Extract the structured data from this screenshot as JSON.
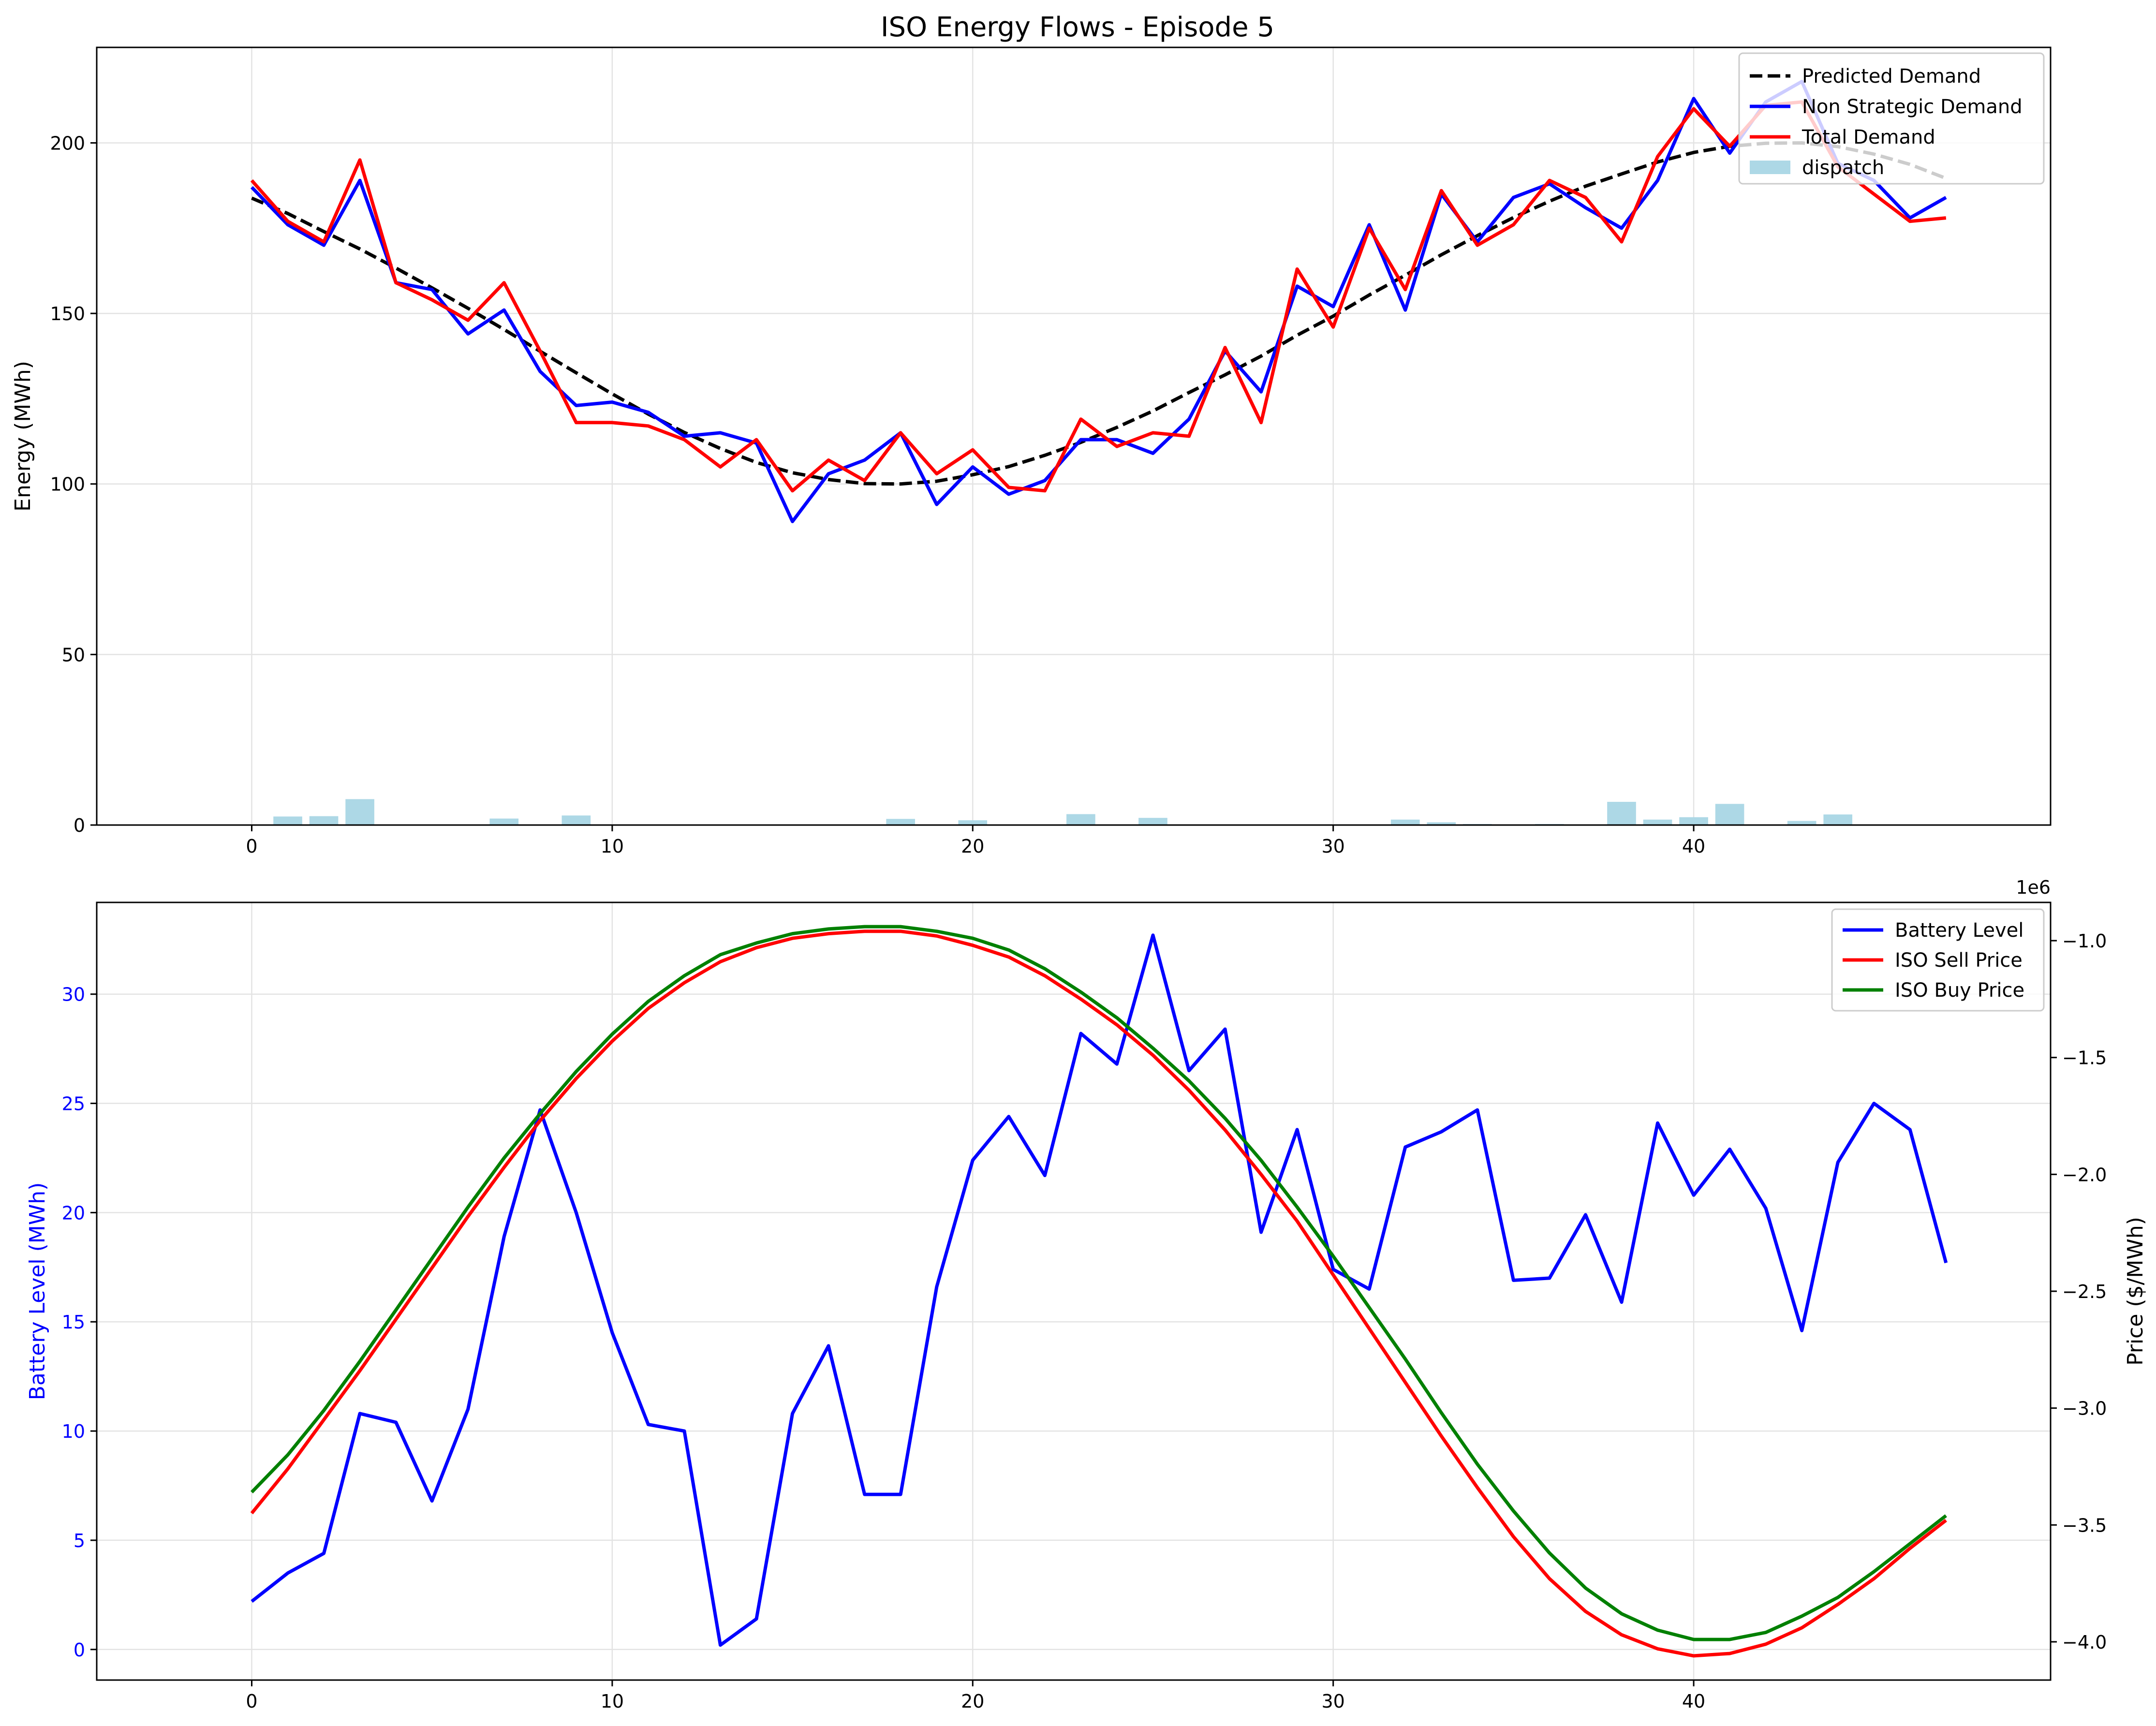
{
  "title": "ISO Energy Flows - Episode 5",
  "chart_data": [
    {
      "type": "line",
      "title": "ISO Energy Flows - Episode 5",
      "xlabel": "",
      "ylabel": "Energy (MWh)",
      "xlim": [
        -4.3,
        49.9
      ],
      "ylim": [
        0,
        228
      ],
      "xticks": [
        0,
        10,
        20,
        30,
        40
      ],
      "yticks": [
        0,
        50,
        100,
        150,
        200
      ],
      "grid": true,
      "legend": "top-right",
      "x": [
        0,
        1,
        2,
        3,
        4,
        5,
        6,
        7,
        8,
        9,
        10,
        11,
        12,
        13,
        14,
        15,
        16,
        17,
        18,
        19,
        20,
        21,
        22,
        23,
        24,
        25,
        26,
        27,
        28,
        29,
        30,
        31,
        32,
        33,
        34,
        35,
        36,
        37,
        38,
        39,
        40,
        41,
        42,
        43,
        44,
        45,
        46,
        47
      ],
      "series": [
        {
          "name": "Predicted Demand",
          "style": "dashed",
          "color": "#000000",
          "values": [
            183.8,
            179.3,
            174.0,
            168.9,
            163.3,
            157.5,
            151.5,
            145.3,
            138.9,
            132.6,
            126.4,
            120.5,
            115.1,
            110.4,
            106.3,
            103.3,
            101.3,
            100.1,
            100.0,
            100.8,
            102.7,
            105.1,
            108.4,
            112.2,
            116.6,
            121.4,
            126.8,
            132.0,
            137.5,
            143.6,
            149.2,
            155.4,
            161.2,
            167.2,
            172.8,
            178.1,
            182.9,
            187.3,
            190.9,
            194.4,
            197.2,
            199.0,
            199.9,
            200.0,
            198.9,
            196.7,
            193.7,
            189.6
          ]
        },
        {
          "name": "Non Strategic Demand",
          "style": "solid",
          "color": "#0000ff",
          "values": [
            187,
            176,
            170,
            189,
            159,
            157,
            144,
            151,
            133,
            123,
            124,
            121,
            114,
            115,
            112,
            89,
            103,
            107,
            115,
            94,
            105,
            97,
            101,
            113,
            113,
            109,
            119,
            139,
            127,
            158,
            152,
            176,
            151,
            185,
            171,
            184,
            188,
            181,
            175,
            189,
            213,
            197,
            212,
            218,
            194,
            189,
            178,
            184
          ]
        },
        {
          "name": "Total Demand",
          "style": "solid",
          "color": "#ff0000",
          "values": [
            189,
            177,
            171,
            195,
            159,
            154,
            148,
            159,
            139,
            118,
            118,
            117,
            113,
            105,
            113,
            98,
            107,
            101,
            115,
            103,
            110,
            99,
            98,
            119,
            111,
            115,
            114,
            140,
            118,
            163,
            146,
            175,
            157,
            186,
            170,
            176,
            189,
            184,
            171,
            196,
            210,
            199,
            211,
            212,
            193,
            185,
            177,
            178
          ]
        },
        {
          "name": "dispatch",
          "style": "bar",
          "color": "#add8e6",
          "values": [
            0,
            2.5,
            2.6,
            7.6,
            0,
            0,
            0,
            1.9,
            0,
            2.8,
            0,
            0,
            0,
            0,
            0,
            0,
            0,
            0,
            1.8,
            0,
            1.4,
            0,
            0,
            3.2,
            0,
            2.1,
            0,
            0,
            0,
            0,
            0,
            0,
            1.6,
            0.8,
            0.3,
            0,
            0.3,
            0,
            6.8,
            1.6,
            2.3,
            6.2,
            0,
            1.2,
            3.1,
            0,
            0,
            0
          ]
        }
      ]
    },
    {
      "type": "line",
      "title": "",
      "xlabel": "",
      "ylabel": "Battery Level (MWh)",
      "y2label": "Price ($/MWh)",
      "y2_offset_text": "1e6",
      "xlim": [
        -4.3,
        49.9
      ],
      "ylim": [
        -1.4,
        34.2
      ],
      "y2lim": [
        -4.1636,
        -0.8364
      ],
      "xticks": [
        0,
        10,
        20,
        30,
        40
      ],
      "yticks": [
        0,
        5,
        10,
        15,
        20,
        25,
        30
      ],
      "y2ticks": [
        -4.0,
        -3.5,
        -3.0,
        -2.5,
        -2.0,
        -1.5,
        -1.0
      ],
      "y2ticklabels": [
        "−4.0",
        "−3.5",
        "−3.0",
        "−2.5",
        "−2.0",
        "−1.5",
        "−1.0"
      ],
      "grid": true,
      "legend": "top-right",
      "x": [
        0,
        1,
        2,
        3,
        4,
        5,
        6,
        7,
        8,
        9,
        10,
        11,
        12,
        13,
        14,
        15,
        16,
        17,
        18,
        19,
        20,
        21,
        22,
        23,
        24,
        25,
        26,
        27,
        28,
        29,
        30,
        31,
        32,
        33,
        34,
        35,
        36,
        37,
        38,
        39,
        40,
        41,
        42,
        43,
        44,
        45,
        46,
        47
      ],
      "series": [
        {
          "name": "Battery Level",
          "axis": "left",
          "color": "#0000ff",
          "values": [
            2.2,
            3.5,
            4.4,
            10.8,
            10.4,
            6.8,
            11.0,
            18.9,
            24.7,
            20.0,
            14.5,
            10.3,
            10.0,
            0.2,
            1.4,
            10.8,
            13.9,
            7.1,
            7.1,
            16.6,
            22.4,
            24.4,
            21.7,
            28.2,
            26.8,
            32.7,
            26.5,
            28.4,
            19.1,
            23.8,
            17.4,
            16.5,
            23.0,
            23.7,
            24.7,
            16.9,
            17.0,
            19.9,
            15.9,
            24.1,
            20.8,
            22.9,
            20.2,
            14.6,
            22.3,
            25.0,
            23.8,
            17.7
          ]
        },
        {
          "name": "ISO Sell Price",
          "axis": "right",
          "color": "#ff0000",
          "values": [
            -3.45,
            -3.26,
            -3.05,
            -2.84,
            -2.62,
            -2.4,
            -2.18,
            -1.97,
            -1.77,
            -1.59,
            -1.43,
            -1.29,
            -1.18,
            -1.09,
            -1.03,
            -0.99,
            -0.97,
            -0.96,
            -0.96,
            -0.98,
            -1.02,
            -1.07,
            -1.15,
            -1.25,
            -1.36,
            -1.49,
            -1.64,
            -1.81,
            -2.0,
            -2.2,
            -2.43,
            -2.66,
            -2.89,
            -3.12,
            -3.34,
            -3.55,
            -3.73,
            -3.87,
            -3.97,
            -4.03,
            -4.06,
            -4.05,
            -4.01,
            -3.94,
            -3.84,
            -3.73,
            -3.6,
            -3.48
          ]
        },
        {
          "name": "ISO Buy Price",
          "axis": "right",
          "color": "#008000",
          "values": [
            -3.36,
            -3.2,
            -3.01,
            -2.8,
            -2.58,
            -2.36,
            -2.14,
            -1.93,
            -1.74,
            -1.56,
            -1.4,
            -1.26,
            -1.15,
            -1.06,
            -1.01,
            -0.97,
            -0.95,
            -0.94,
            -0.94,
            -0.96,
            -0.99,
            -1.04,
            -1.12,
            -1.22,
            -1.33,
            -1.46,
            -1.6,
            -1.76,
            -1.94,
            -2.14,
            -2.35,
            -2.57,
            -2.79,
            -3.02,
            -3.24,
            -3.44,
            -3.62,
            -3.77,
            -3.88,
            -3.95,
            -3.99,
            -3.99,
            -3.96,
            -3.89,
            -3.81,
            -3.7,
            -3.58,
            -3.46
          ]
        }
      ]
    }
  ]
}
